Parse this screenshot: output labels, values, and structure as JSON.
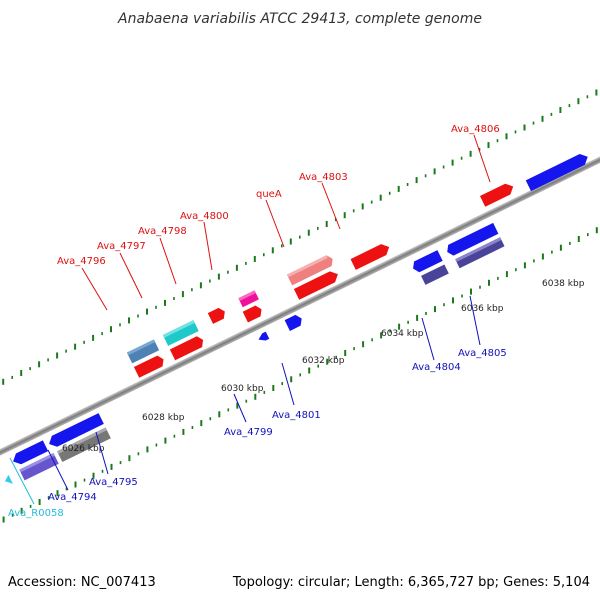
{
  "title": "Anabaena variabilis ATCC 29413, complete genome",
  "footer": {
    "accession": "Accession: NC_007413",
    "summary": "Topology: circular; Length: 6,365,727 bp; Genes: 5,104"
  },
  "colors": {
    "backbone": "#8c8c8c",
    "ticks": "#1a7a1a",
    "forward_label": "#dd1111",
    "reverse_label": "#1111bb",
    "rna_label": "#22bbdd"
  },
  "ruler": {
    "labels": [
      "6026 kbp",
      "6028 kbp",
      "6030 kbp",
      "6032 kbp",
      "6034 kbp",
      "6036 kbp",
      "6038 kbp"
    ]
  },
  "genes": [
    {
      "name": "Ava_R0058",
      "strand": "reverse",
      "type": "RNA",
      "fill": "#33ccee"
    },
    {
      "name": "Ava_4794",
      "strand": "reverse",
      "fill": "#6655cc"
    },
    {
      "name": "Ava_4795",
      "strand": "reverse",
      "fill": "#777777"
    },
    {
      "name": "Ava_4796",
      "strand": "forward",
      "fill": "#4f82b4"
    },
    {
      "name": "Ava_4797",
      "strand": "forward",
      "fill": "#1fc9c9"
    },
    {
      "name": "Ava_4798",
      "strand": "forward",
      "fill": "#ee1111"
    },
    {
      "name": "Ava_4799",
      "strand": "reverse",
      "fill": "#1515ee"
    },
    {
      "name": "Ava_4800",
      "strand": "forward",
      "fill": "#ee1199"
    },
    {
      "name": "queA",
      "strand": "forward",
      "fill": "#f08080"
    },
    {
      "name": "Ava_4801",
      "strand": "reverse",
      "fill": "#1515ee"
    },
    {
      "name": "Ava_4803",
      "strand": "forward",
      "fill": "#ee1111"
    },
    {
      "name": "Ava_4804",
      "strand": "reverse",
      "fill": "#4a4499"
    },
    {
      "name": "Ava_4805",
      "strand": "reverse",
      "fill": "#4a4499"
    },
    {
      "name": "Ava_4806",
      "strand": "forward",
      "fill": "#ee1111"
    }
  ]
}
